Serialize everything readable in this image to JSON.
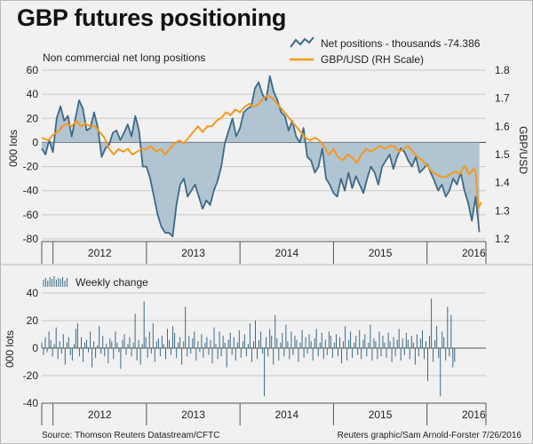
{
  "title": "GBP futures positioning",
  "source": "Source: Thomson Reuters Datastream/CFTC",
  "credit": "Reuters graphic/Sam Arnold-Forster 7/26/2016",
  "colors": {
    "area_fill": "#a9bfcd",
    "area_line": "#3d6a86",
    "gbp_line": "#f39a1e",
    "bars": "#3d6a86",
    "grid": "#c9c9c9",
    "background": "#f1f1f1"
  },
  "chart_data": [
    {
      "type": "area",
      "subtitle": "Non commercial net long positions",
      "ylabel_left": "000 lots",
      "ylabel_right": "GBP/USD",
      "ylim_left": [
        -80,
        60
      ],
      "yticks_left": [
        -80,
        -60,
        -40,
        -20,
        0,
        20,
        40,
        60
      ],
      "ylim_right": [
        1.2,
        1.8
      ],
      "yticks_right": [
        "1.2",
        "1.3",
        "1.4",
        "1.5",
        "1.6",
        "1.7",
        "1.8"
      ],
      "xlim": [
        2011.88,
        2016.63
      ],
      "xticks": [
        "2012",
        "2013",
        "2014",
        "2015",
        "2016"
      ],
      "legend": {
        "net_label": "Net positions - thousands -74.386",
        "gbp_label": "GBP/USD (RH Scale)",
        "position": "top-right"
      },
      "series": [
        {
          "name": "Net positions - thousands",
          "axis": "left",
          "x": [
            2011.88,
            2011.92,
            2011.96,
            2012.0,
            2012.04,
            2012.08,
            2012.12,
            2012.16,
            2012.2,
            2012.24,
            2012.28,
            2012.32,
            2012.36,
            2012.4,
            2012.44,
            2012.48,
            2012.52,
            2012.56,
            2012.6,
            2012.64,
            2012.68,
            2012.72,
            2012.76,
            2012.8,
            2012.84,
            2012.88,
            2012.92,
            2012.96,
            2013.0,
            2013.04,
            2013.08,
            2013.12,
            2013.16,
            2013.2,
            2013.24,
            2013.28,
            2013.32,
            2013.36,
            2013.4,
            2013.44,
            2013.48,
            2013.52,
            2013.56,
            2013.6,
            2013.64,
            2013.68,
            2013.72,
            2013.76,
            2013.8,
            2013.84,
            2013.88,
            2013.92,
            2013.96,
            2014.0,
            2014.04,
            2014.08,
            2014.12,
            2014.16,
            2014.2,
            2014.24,
            2014.28,
            2014.32,
            2014.36,
            2014.4,
            2014.44,
            2014.48,
            2014.52,
            2014.56,
            2014.6,
            2014.64,
            2014.68,
            2014.72,
            2014.76,
            2014.8,
            2014.84,
            2014.88,
            2014.92,
            2014.96,
            2015.0,
            2015.04,
            2015.08,
            2015.12,
            2015.16,
            2015.2,
            2015.24,
            2015.28,
            2015.32,
            2015.36,
            2015.4,
            2015.44,
            2015.48,
            2015.52,
            2015.56,
            2015.6,
            2015.64,
            2015.68,
            2015.72,
            2015.76,
            2015.8,
            2015.84,
            2015.88,
            2015.92,
            2015.96,
            2016.0,
            2016.04,
            2016.08,
            2016.12,
            2016.16,
            2016.2,
            2016.24,
            2016.28,
            2016.32,
            2016.36,
            2016.4,
            2016.44,
            2016.48,
            2016.52,
            2016.56
          ],
          "values": [
            -5,
            -10,
            2,
            -8,
            20,
            30,
            18,
            22,
            5,
            20,
            35,
            28,
            10,
            12,
            25,
            12,
            -12,
            -5,
            -2,
            8,
            10,
            2,
            8,
            15,
            5,
            22,
            10,
            -20,
            -20,
            -30,
            -45,
            -60,
            -70,
            -75,
            -75,
            -78,
            -52,
            -35,
            -30,
            -45,
            -40,
            -35,
            -45,
            -55,
            -48,
            -52,
            -40,
            -32,
            -20,
            0,
            10,
            20,
            5,
            12,
            25,
            28,
            30,
            45,
            50,
            40,
            35,
            55,
            42,
            35,
            25,
            22,
            10,
            18,
            5,
            0,
            12,
            -12,
            -15,
            -25,
            -20,
            -5,
            -30,
            -35,
            -42,
            -45,
            -30,
            -40,
            -25,
            -38,
            -28,
            -35,
            -42,
            -30,
            -20,
            -25,
            -35,
            -20,
            -15,
            -10,
            -22,
            -12,
            -5,
            -8,
            -15,
            -20,
            -12,
            -25,
            -22,
            -18,
            -25,
            -32,
            -40,
            -35,
            -45,
            -40,
            -30,
            -35,
            -25,
            -40,
            -50,
            -65,
            -45,
            -74.386
          ]
        },
        {
          "name": "GBP/USD (RH Scale)",
          "axis": "right",
          "x": [
            2011.88,
            2011.95,
            2012.0,
            2012.05,
            2012.1,
            2012.15,
            2012.2,
            2012.25,
            2012.3,
            2012.35,
            2012.4,
            2012.45,
            2012.5,
            2012.55,
            2012.6,
            2012.65,
            2012.7,
            2012.75,
            2012.8,
            2012.85,
            2012.9,
            2012.95,
            2013.0,
            2013.05,
            2013.1,
            2013.15,
            2013.2,
            2013.25,
            2013.3,
            2013.35,
            2013.4,
            2013.45,
            2013.5,
            2013.55,
            2013.6,
            2013.65,
            2013.7,
            2013.75,
            2013.8,
            2013.85,
            2013.9,
            2013.95,
            2014.0,
            2014.05,
            2014.1,
            2014.15,
            2014.2,
            2014.25,
            2014.3,
            2014.35,
            2014.4,
            2014.45,
            2014.5,
            2014.55,
            2014.6,
            2014.65,
            2014.7,
            2014.75,
            2014.8,
            2014.85,
            2014.9,
            2014.95,
            2015.0,
            2015.05,
            2015.1,
            2015.15,
            2015.2,
            2015.25,
            2015.3,
            2015.35,
            2015.4,
            2015.45,
            2015.5,
            2015.55,
            2015.6,
            2015.65,
            2015.7,
            2015.75,
            2015.8,
            2015.85,
            2015.9,
            2015.95,
            2016.0,
            2016.05,
            2016.1,
            2016.15,
            2016.2,
            2016.25,
            2016.3,
            2016.35,
            2016.4,
            2016.45,
            2016.48,
            2016.5,
            2016.52,
            2016.55,
            2016.58
          ],
          "values": [
            1.56,
            1.55,
            1.57,
            1.58,
            1.6,
            1.61,
            1.6,
            1.62,
            1.6,
            1.61,
            1.6,
            1.6,
            1.58,
            1.56,
            1.52,
            1.5,
            1.52,
            1.51,
            1.52,
            1.5,
            1.51,
            1.52,
            1.52,
            1.53,
            1.51,
            1.52,
            1.5,
            1.52,
            1.54,
            1.55,
            1.54,
            1.56,
            1.58,
            1.6,
            1.58,
            1.6,
            1.6,
            1.62,
            1.63,
            1.65,
            1.64,
            1.66,
            1.65,
            1.67,
            1.68,
            1.67,
            1.68,
            1.7,
            1.71,
            1.7,
            1.68,
            1.66,
            1.64,
            1.62,
            1.6,
            1.58,
            1.56,
            1.55,
            1.56,
            1.55,
            1.53,
            1.5,
            1.52,
            1.49,
            1.48,
            1.5,
            1.49,
            1.47,
            1.5,
            1.52,
            1.51,
            1.52,
            1.53,
            1.52,
            1.53,
            1.53,
            1.51,
            1.52,
            1.53,
            1.51,
            1.49,
            1.48,
            1.46,
            1.44,
            1.43,
            1.42,
            1.42,
            1.43,
            1.44,
            1.43,
            1.46,
            1.43,
            1.44,
            1.45,
            1.44,
            1.31,
            1.33
          ]
        }
      ]
    },
    {
      "type": "bar",
      "legend_label": "Weekly change",
      "ylabel": "000 lots",
      "ylim": [
        -40,
        40
      ],
      "yticks": [
        -40,
        -20,
        0,
        20,
        40
      ],
      "xlim": [
        2011.88,
        2016.63
      ],
      "xticks": [
        "2012",
        "2013",
        "2014",
        "2015",
        "2016"
      ],
      "bar_start": 2011.88,
      "bar_step": 0.0192,
      "values": [
        4,
        -5,
        8,
        -3,
        12,
        6,
        -6,
        3,
        15,
        -8,
        5,
        -4,
        10,
        -12,
        4,
        8,
        -5,
        -9,
        3,
        14,
        18,
        -6,
        8,
        -10,
        4,
        6,
        -3,
        12,
        -14,
        5,
        -7,
        2,
        16,
        -4,
        9,
        -6,
        3,
        -11,
        7,
        5,
        -8,
        12,
        4,
        -3,
        -15,
        6,
        10,
        -5,
        3,
        8,
        -6,
        4,
        25,
        -9,
        6,
        -12,
        3,
        34,
        8,
        -7,
        12,
        -4,
        18,
        -10,
        5,
        7,
        -6,
        9,
        3,
        -8,
        14,
        6,
        -5,
        16,
        11,
        -7,
        4,
        8,
        -12,
        5,
        30,
        -6,
        9,
        -4,
        7,
        12,
        -9,
        5,
        -3,
        10,
        -7,
        4,
        8,
        -5,
        6,
        -11,
        15,
        3,
        -8,
        12,
        -6,
        9,
        4,
        -14,
        6,
        11,
        -5,
        8,
        -9,
        4,
        13,
        -7,
        5,
        10,
        -6,
        3,
        18,
        -10,
        5,
        20,
        -8,
        6,
        12,
        -4,
        -35,
        8,
        -6,
        14,
        9,
        -12,
        24,
        7,
        -9,
        4,
        11,
        -6,
        17,
        5,
        -8,
        12,
        -5,
        9,
        6,
        -10,
        4,
        13,
        -7,
        8,
        -4,
        10,
        5,
        -9,
        7,
        14,
        -6,
        4,
        11,
        -8,
        6,
        -5,
        12,
        9,
        -7,
        4,
        10,
        -6,
        8,
        -11,
        5,
        16,
        -9,
        6,
        12,
        -7,
        4,
        9,
        -5,
        13,
        -8,
        6,
        10,
        -6,
        4,
        17,
        -9,
        7,
        5,
        -8,
        12,
        -6,
        9,
        4,
        -7,
        11,
        5,
        -10,
        8,
        -6,
        6,
        14,
        -9,
        7,
        -5,
        11,
        6,
        -8,
        9,
        4,
        -12,
        10,
        -6,
        7,
        13,
        -8,
        5,
        -24,
        9,
        36,
        -10,
        6,
        16,
        -7,
        -35,
        12,
        8,
        -9,
        30,
        -6,
        24,
        -14,
        -10
      ]
    }
  ]
}
